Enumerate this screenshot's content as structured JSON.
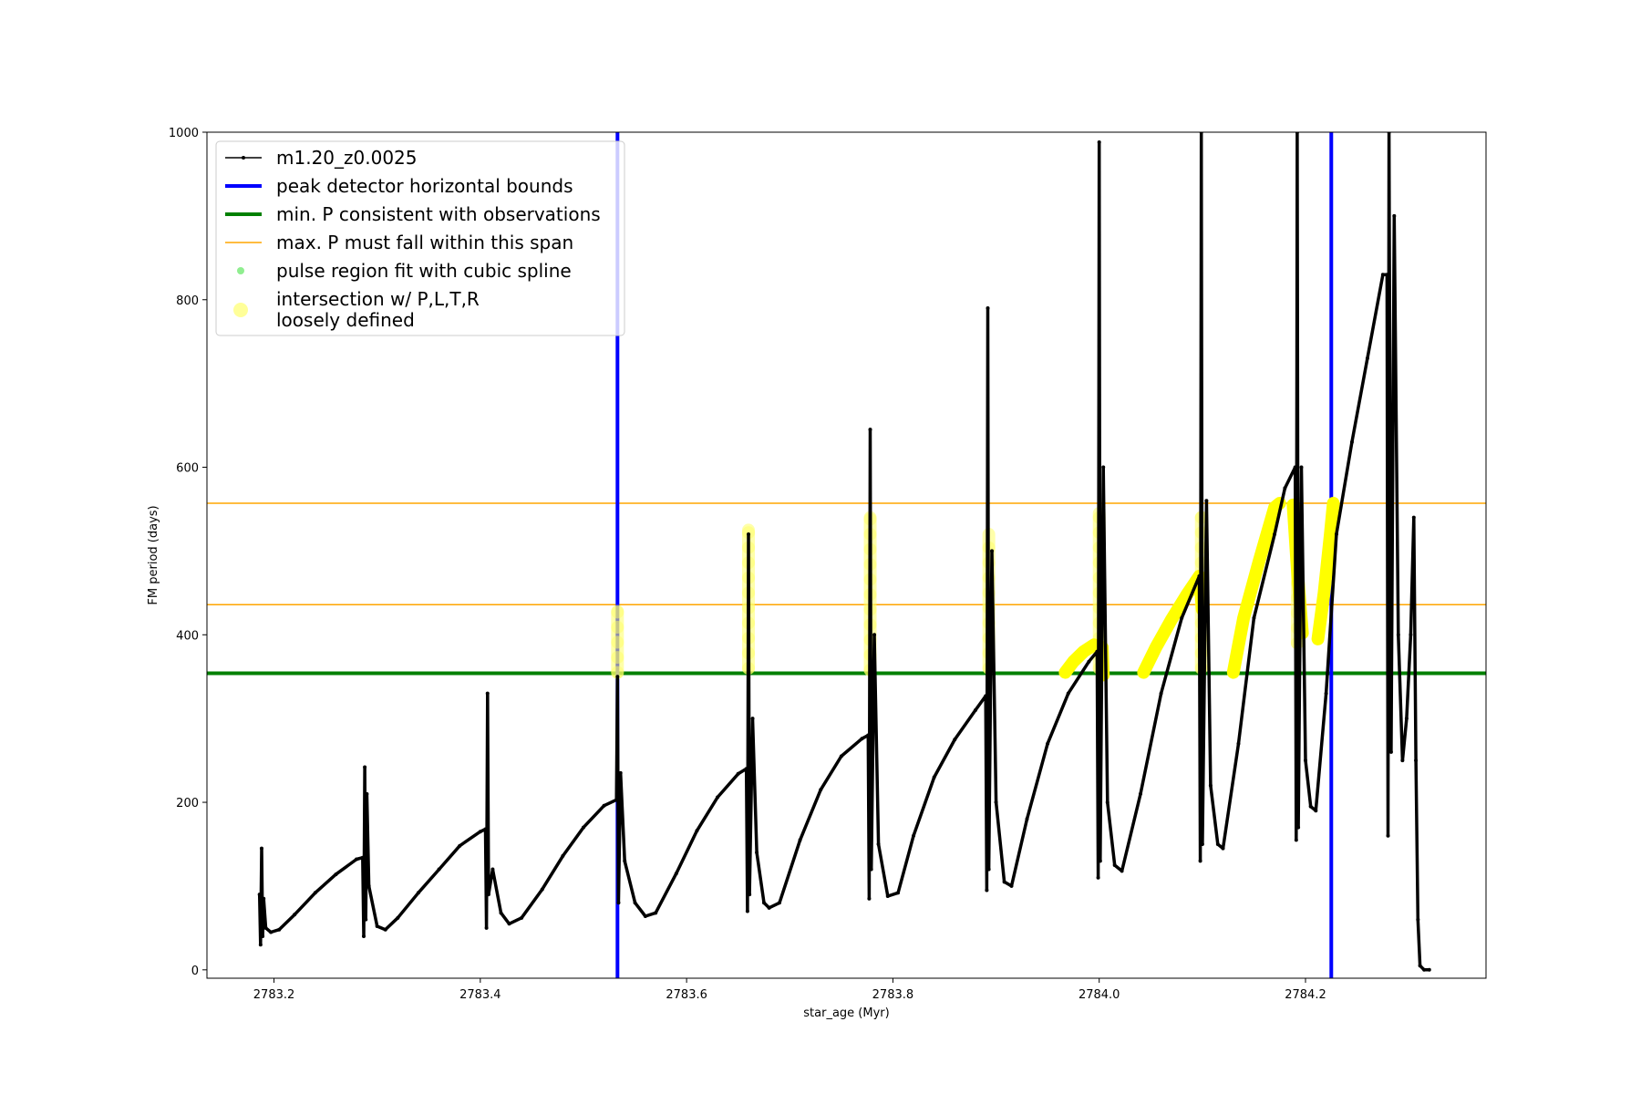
{
  "chart_data": {
    "type": "line",
    "title": "",
    "xlabel": "star_age (Myr)",
    "ylabel": "FM period (days)",
    "xlim": [
      2783.135,
      2784.375
    ],
    "ylim": [
      -10,
      1000
    ],
    "x_ticks": [
      2783.2,
      2783.4,
      2783.6,
      2783.8,
      2784.0,
      2784.2
    ],
    "x_tick_labels": [
      "2783.2",
      "2783.4",
      "2783.6",
      "2783.8",
      "2784.0",
      "2784.2"
    ],
    "y_ticks": [
      0,
      200,
      400,
      600,
      800,
      1000
    ],
    "y_tick_labels": [
      "0",
      "200",
      "400",
      "600",
      "800",
      "1000"
    ],
    "grid": false,
    "legend_position": "upper-left",
    "legend": [
      {
        "label": "m1.20_z0.0025",
        "style": "line-dot",
        "color": "#000000"
      },
      {
        "label": "peak detector horizontal bounds",
        "style": "line-thick",
        "color": "#0000ff"
      },
      {
        "label": "min. P consistent with observations",
        "style": "line-thick",
        "color": "#008000"
      },
      {
        "label": "max. P must fall within this span",
        "style": "line-thin",
        "color": "#ffa500"
      },
      {
        "label": "pulse region fit with cubic spline",
        "style": "dot",
        "color": "#90ee90"
      },
      {
        "label": "intersection w/ P,L,T,R\nloosely defined",
        "style": "big-dot",
        "color": "#ffff99"
      }
    ],
    "vertical_lines": [
      {
        "name": "peak detector horizontal bounds",
        "x": 2783.533,
        "color": "#0000ff"
      },
      {
        "name": "peak detector horizontal bounds",
        "x": 2784.225,
        "color": "#0000ff"
      }
    ],
    "horizontal_lines": [
      {
        "name": "min. P consistent with observations",
        "y": 354,
        "color": "#008000"
      },
      {
        "name": "max. P must fall within this span",
        "y": 436,
        "color": "#ffa500"
      },
      {
        "name": "max. P must fall within this span",
        "y": 557,
        "color": "#ffa500"
      }
    ],
    "series": [
      {
        "name": "m1.20_z0.0025",
        "color": "#000000",
        "points": [
          [
            2783.186,
            90
          ],
          [
            2783.187,
            30
          ],
          [
            2783.188,
            145
          ],
          [
            2783.189,
            40
          ],
          [
            2783.19,
            85
          ],
          [
            2783.192,
            50
          ],
          [
            2783.197,
            45
          ],
          [
            2783.205,
            48
          ],
          [
            2783.22,
            66
          ],
          [
            2783.24,
            92
          ],
          [
            2783.26,
            114
          ],
          [
            2783.28,
            132
          ],
          [
            2783.286,
            134
          ],
          [
            2783.287,
            40
          ],
          [
            2783.288,
            242
          ],
          [
            2783.289,
            60
          ],
          [
            2783.29,
            210
          ],
          [
            2783.292,
            100
          ],
          [
            2783.3,
            52
          ],
          [
            2783.308,
            48
          ],
          [
            2783.32,
            62
          ],
          [
            2783.34,
            92
          ],
          [
            2783.36,
            120
          ],
          [
            2783.38,
            148
          ],
          [
            2783.4,
            165
          ],
          [
            2783.405,
            168
          ],
          [
            2783.406,
            50
          ],
          [
            2783.407,
            330
          ],
          [
            2783.408,
            90
          ],
          [
            2783.412,
            120
          ],
          [
            2783.42,
            68
          ],
          [
            2783.428,
            55
          ],
          [
            2783.44,
            62
          ],
          [
            2783.46,
            96
          ],
          [
            2783.48,
            136
          ],
          [
            2783.5,
            170
          ],
          [
            2783.52,
            196
          ],
          [
            2783.532,
            203
          ],
          [
            2783.533,
            350
          ],
          [
            2783.534,
            80
          ],
          [
            2783.536,
            235
          ],
          [
            2783.54,
            130
          ],
          [
            2783.55,
            80
          ],
          [
            2783.56,
            64
          ],
          [
            2783.57,
            68
          ],
          [
            2783.59,
            115
          ],
          [
            2783.61,
            166
          ],
          [
            2783.63,
            206
          ],
          [
            2783.65,
            234
          ],
          [
            2783.658,
            240
          ],
          [
            2783.659,
            70
          ],
          [
            2783.66,
            520
          ],
          [
            2783.661,
            90
          ],
          [
            2783.664,
            300
          ],
          [
            2783.668,
            140
          ],
          [
            2783.675,
            80
          ],
          [
            2783.68,
            74
          ],
          [
            2783.69,
            80
          ],
          [
            2783.71,
            155
          ],
          [
            2783.73,
            215
          ],
          [
            2783.75,
            255
          ],
          [
            2783.77,
            276
          ],
          [
            2783.776,
            280
          ],
          [
            2783.777,
            85
          ],
          [
            2783.778,
            645
          ],
          [
            2783.779,
            120
          ],
          [
            2783.782,
            400
          ],
          [
            2783.786,
            150
          ],
          [
            2783.795,
            88
          ],
          [
            2783.805,
            92
          ],
          [
            2783.82,
            160
          ],
          [
            2783.84,
            230
          ],
          [
            2783.86,
            275
          ],
          [
            2783.88,
            310
          ],
          [
            2783.89,
            327
          ],
          [
            2783.891,
            95
          ],
          [
            2783.892,
            790
          ],
          [
            2783.893,
            120
          ],
          [
            2783.896,
            500
          ],
          [
            2783.9,
            200
          ],
          [
            2783.908,
            105
          ],
          [
            2783.915,
            100
          ],
          [
            2783.93,
            180
          ],
          [
            2783.95,
            270
          ],
          [
            2783.97,
            330
          ],
          [
            2783.99,
            368
          ],
          [
            2783.998,
            380
          ],
          [
            2783.999,
            110
          ],
          [
            2784.0,
            988
          ],
          [
            2784.001,
            130
          ],
          [
            2784.004,
            600
          ],
          [
            2784.008,
            200
          ],
          [
            2784.015,
            125
          ],
          [
            2784.022,
            118
          ],
          [
            2784.04,
            210
          ],
          [
            2784.06,
            330
          ],
          [
            2784.08,
            420
          ],
          [
            2784.097,
            470
          ],
          [
            2784.098,
            130
          ],
          [
            2784.099,
            1000
          ],
          [
            2784.1,
            150
          ],
          [
            2784.104,
            560
          ],
          [
            2784.108,
            220
          ],
          [
            2784.115,
            150
          ],
          [
            2784.12,
            145
          ],
          [
            2784.135,
            270
          ],
          [
            2784.15,
            420
          ],
          [
            2784.17,
            520
          ],
          [
            2784.18,
            575
          ],
          [
            2784.19,
            600
          ],
          [
            2784.191,
            155
          ],
          [
            2784.192,
            1000
          ],
          [
            2784.193,
            170
          ],
          [
            2784.196,
            600
          ],
          [
            2784.2,
            250
          ],
          [
            2784.205,
            195
          ],
          [
            2784.21,
            190
          ],
          [
            2784.22,
            330
          ],
          [
            2784.23,
            520
          ],
          [
            2784.245,
            630
          ],
          [
            2784.26,
            730
          ],
          [
            2784.275,
            830
          ],
          [
            2784.279,
            830
          ],
          [
            2784.28,
            160
          ],
          [
            2784.281,
            1000
          ],
          [
            2784.283,
            260
          ],
          [
            2784.286,
            900
          ],
          [
            2784.29,
            400
          ],
          [
            2784.294,
            250
          ],
          [
            2784.298,
            300
          ],
          [
            2784.302,
            400
          ],
          [
            2784.305,
            540
          ],
          [
            2784.307,
            250
          ],
          [
            2784.309,
            60
          ],
          [
            2784.311,
            5
          ],
          [
            2784.315,
            0
          ],
          [
            2784.32,
            0
          ]
        ]
      }
    ],
    "spline_segments": [
      [
        [
          2783.967,
          355
        ],
        [
          2783.975,
          368
        ],
        [
          2783.985,
          380
        ],
        [
          2783.995,
          388
        ],
        [
          2784.003,
          385
        ],
        [
          2784.004,
          352
        ]
      ],
      [
        [
          2784.043,
          355
        ],
        [
          2784.055,
          385
        ],
        [
          2784.07,
          418
        ],
        [
          2784.085,
          448
        ],
        [
          2784.097,
          470
        ],
        [
          2784.1,
          430
        ]
      ],
      [
        [
          2784.13,
          355
        ],
        [
          2784.14,
          420
        ],
        [
          2784.155,
          488
        ],
        [
          2784.17,
          552
        ],
        [
          2784.175,
          557
        ]
      ],
      [
        [
          2784.188,
          555
        ],
        [
          2784.192,
          480
        ],
        [
          2784.197,
          402
        ]
      ],
      [
        [
          2784.212,
          395
        ],
        [
          2784.218,
          450
        ],
        [
          2784.224,
          520
        ],
        [
          2784.227,
          557
        ]
      ]
    ],
    "spline_marker_columns": [
      {
        "x": 2783.533,
        "y_range": [
          355,
          428
        ]
      },
      {
        "x": 2783.66,
        "y_range": [
          360,
          525
        ]
      },
      {
        "x": 2783.778,
        "y_range": [
          358,
          540
        ]
      },
      {
        "x": 2783.893,
        "y_range": [
          360,
          520
        ]
      },
      {
        "x": 2784.0,
        "y_range": [
          360,
          545
        ]
      },
      {
        "x": 2784.099,
        "y_range": [
          360,
          540
        ]
      },
      {
        "x": 2784.192,
        "y_range": [
          390,
          540
        ]
      }
    ]
  }
}
